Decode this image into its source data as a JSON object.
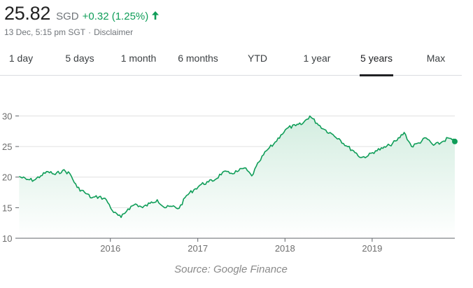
{
  "quote": {
    "price": "25.82",
    "currency": "SGD",
    "change": "+0.32 (1.25%)",
    "timestamp": "13 Dec, 5:15 pm SGT",
    "separator": "·",
    "disclaimer": "Disclaimer"
  },
  "tabs": [
    {
      "label": "1 day"
    },
    {
      "label": "5 days"
    },
    {
      "label": "1 month"
    },
    {
      "label": "6 months"
    },
    {
      "label": "YTD"
    },
    {
      "label": "1 year"
    },
    {
      "label": "5 years",
      "active": true
    },
    {
      "label": "Max"
    }
  ],
  "chart_data": {
    "type": "area",
    "title": "",
    "xlabel": "",
    "ylabel": "",
    "x_ticks": [
      "2016",
      "2017",
      "2018",
      "2019"
    ],
    "y_ticks": [
      10,
      15,
      20,
      25,
      30
    ],
    "xlim": [
      "2014-12-14",
      "2019-12-13"
    ],
    "ylim": [
      10,
      32
    ],
    "grid": "horizontal",
    "series": [
      {
        "x": [
          "2014-12-15",
          "2015-01-15",
          "2015-02-15",
          "2015-03-15",
          "2015-04-15",
          "2015-05-15",
          "2015-06-15",
          "2015-07-15",
          "2015-08-15",
          "2015-09-15",
          "2015-10-15",
          "2015-11-15",
          "2015-12-15",
          "2016-01-15",
          "2016-02-15",
          "2016-03-15",
          "2016-04-15",
          "2016-05-15",
          "2016-06-15",
          "2016-07-15",
          "2016-08-15",
          "2016-09-15",
          "2016-10-15",
          "2016-11-15",
          "2016-12-15",
          "2017-01-15",
          "2017-02-15",
          "2017-03-15",
          "2017-04-15",
          "2017-05-15",
          "2017-06-15",
          "2017-07-15",
          "2017-08-15",
          "2017-09-15",
          "2017-10-15",
          "2017-11-15",
          "2017-12-15",
          "2018-01-15",
          "2018-02-15",
          "2018-03-15",
          "2018-04-15",
          "2018-05-15",
          "2018-06-15",
          "2018-07-15",
          "2018-08-15",
          "2018-09-15",
          "2018-10-15",
          "2018-11-15",
          "2018-12-15",
          "2019-01-15",
          "2019-02-15",
          "2019-03-15",
          "2019-04-15",
          "2019-05-15",
          "2019-06-15",
          "2019-07-15",
          "2019-08-15",
          "2019-09-15",
          "2019-10-15",
          "2019-11-15",
          "2019-12-13"
        ],
        "values": [
          20.1,
          19.6,
          19.5,
          20.2,
          20.9,
          20.4,
          21.1,
          20.6,
          18.3,
          17.5,
          16.6,
          16.8,
          16.3,
          14.2,
          13.4,
          14.8,
          15.6,
          15.0,
          15.7,
          16.3,
          15.0,
          15.2,
          14.9,
          17.0,
          17.9,
          18.8,
          19.2,
          19.6,
          20.8,
          20.6,
          20.9,
          21.5,
          20.2,
          22.5,
          24.3,
          25.4,
          26.9,
          28.1,
          28.4,
          28.7,
          30.0,
          28.8,
          27.8,
          27.1,
          26.3,
          25.1,
          24.3,
          23.2,
          23.5,
          24.3,
          24.7,
          25.2,
          26.0,
          27.3,
          25.0,
          25.6,
          26.4,
          25.2,
          25.6,
          26.4,
          25.82
        ]
      }
    ],
    "colors": {
      "line": "#0f9d58",
      "fill_top": "#d3ede0",
      "fill_bottom": "#ffffff",
      "grid": "#e0e0e0",
      "axis": "#5f6368",
      "tick_text": "#6e6e6e"
    }
  },
  "colors": {
    "positive": "#0f9d58",
    "muted": "#70757a"
  },
  "source_caption": "Source: Google Finance"
}
